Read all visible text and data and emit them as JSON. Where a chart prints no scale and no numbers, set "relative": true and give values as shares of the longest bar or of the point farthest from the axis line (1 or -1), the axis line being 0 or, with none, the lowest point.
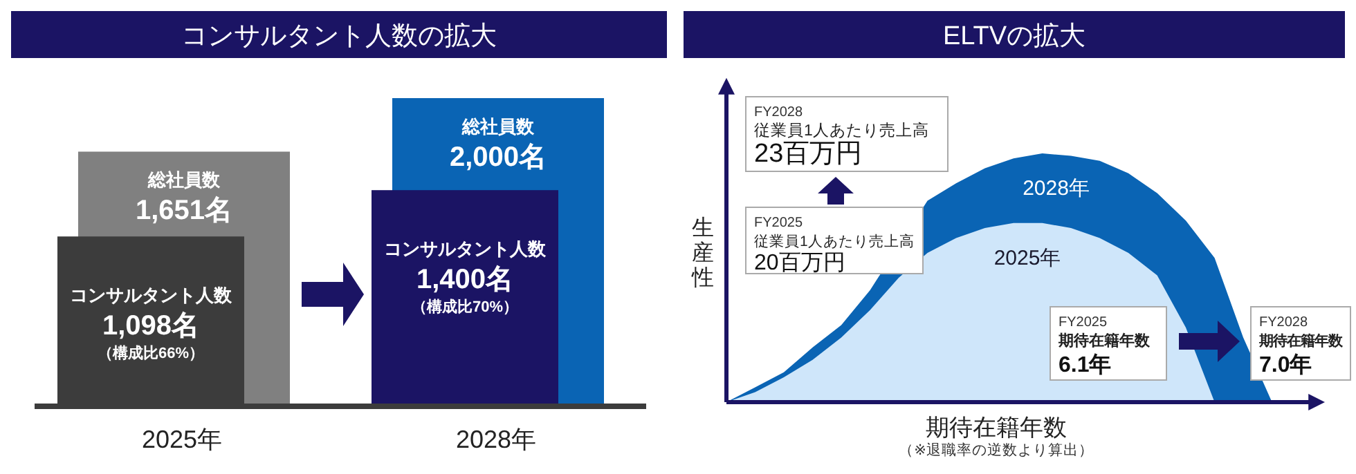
{
  "chart_data": [
    {
      "type": "bar",
      "title": "コンサルタント人数の拡大",
      "categories": [
        "2025年",
        "2028年"
      ],
      "series": [
        {
          "name": "総社員数",
          "colors": [
            "#808080",
            "#0a64b4"
          ],
          "values": [
            1651,
            2000
          ],
          "value_labels": [
            "1,651名",
            "2,000名"
          ]
        },
        {
          "name": "コンサルタント人数",
          "colors": [
            "#3c3c3c",
            "#1b1464"
          ],
          "values": [
            1098,
            1400
          ],
          "value_labels": [
            "1,098名",
            "1,400名"
          ]
        }
      ],
      "annotations": [
        "（構成比66%）",
        "（構成比70%）"
      ]
    },
    {
      "type": "area",
      "title": "ELTVの拡大",
      "xlabel": "期待在籍年数",
      "ylabel": "生産性",
      "relative": true,
      "categories": [
        null,
        null,
        null,
        null,
        null,
        null,
        null,
        null,
        null,
        null,
        null,
        null,
        null,
        null,
        null,
        null,
        null,
        null,
        null,
        null,
        null
      ],
      "series": [
        {
          "name": "2028年",
          "color": "#0a64b4",
          "values": [
            0,
            0.06,
            0.12,
            0.22,
            0.31,
            0.45,
            null,
            0.81,
            0.88,
            0.94,
            0.98,
            1,
            0.99,
            0.97,
            0.92,
            0.84,
            0.73,
            0.58,
            0.26,
            0,
            null
          ]
        },
        {
          "name": "2025年",
          "color": "#cfe6fa",
          "values": [
            0,
            0.04,
            0.1,
            0.17,
            0.26,
            0.37,
            0.5,
            0.6,
            0.66,
            0.7,
            0.72,
            0.72,
            0.7,
            0.66,
            0.6,
            0.51,
            0.3,
            0,
            null,
            null,
            null
          ]
        }
      ],
      "annotations": [
        "FY2028",
        "従業員1人あたり売上高",
        "23百万円",
        "FY2025",
        "従業員1人あたり売上高",
        "20百万円",
        "FY2025",
        "期待在籍年数",
        "6.1年",
        "FY2028",
        "期待在籍年数",
        "7.0年",
        "（※退職率の逆数より算出）"
      ]
    }
  ]
}
